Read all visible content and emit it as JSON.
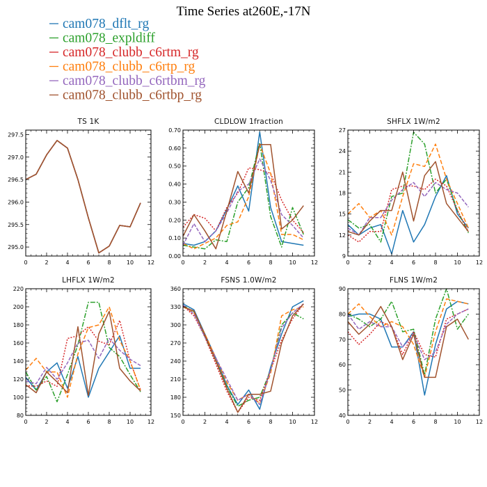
{
  "title": "Time Series at260E,-17N",
  "legend": [
    {
      "label": "cam078_dflt_rg",
      "color": "#1f77b4"
    },
    {
      "label": "cam078_expldiff",
      "color": "#2ca02c"
    },
    {
      "label": "cam078_clubb_c6rtm_rg",
      "color": "#d62728"
    },
    {
      "label": "cam078_clubb_c6rtp_rg",
      "color": "#ff7f0e"
    },
    {
      "label": "cam078_clubb_c6rtbm_rg",
      "color": "#9467bd"
    },
    {
      "label": "cam078_clubb_c6rtbp_rg",
      "color": "#a0522d"
    }
  ],
  "chart_data": [
    {
      "type": "line",
      "title": "TS   1K",
      "x": [
        0,
        1,
        2,
        3,
        4,
        5,
        6,
        7,
        8,
        9,
        10,
        11
      ],
      "xlim": [
        0,
        12
      ],
      "xticks": [
        0,
        2,
        4,
        6,
        8,
        10,
        12
      ],
      "ylim": [
        294.8,
        297.6
      ],
      "yticks": [
        295.0,
        295.5,
        296.0,
        296.5,
        297.0,
        297.5
      ],
      "ytick_labels": [
        "295.0",
        "295.5",
        "296.0",
        "296.5",
        "297.0",
        "297.5"
      ],
      "series": [
        {
          "name": "cam078_dflt_rg",
          "values": [
            296.5,
            296.62,
            297.05,
            297.37,
            297.2,
            296.5,
            295.65,
            294.87,
            295.02,
            295.48,
            295.45,
            295.98
          ]
        },
        {
          "name": "cam078_expldiff",
          "values": [
            296.5,
            296.62,
            297.05,
            297.37,
            297.2,
            296.5,
            295.65,
            294.87,
            295.02,
            295.48,
            295.45,
            295.98
          ]
        },
        {
          "name": "cam078_clubb_c6rtm_rg",
          "values": [
            296.5,
            296.62,
            297.05,
            297.37,
            297.2,
            296.5,
            295.65,
            294.87,
            295.02,
            295.48,
            295.45,
            295.98
          ]
        },
        {
          "name": "cam078_clubb_c6rtp_rg",
          "values": [
            296.5,
            296.62,
            297.05,
            297.37,
            297.2,
            296.5,
            295.65,
            294.87,
            295.02,
            295.48,
            295.45,
            295.98
          ]
        },
        {
          "name": "cam078_clubb_c6rtbm_rg",
          "values": [
            296.5,
            296.62,
            297.05,
            297.37,
            297.2,
            296.5,
            295.65,
            294.87,
            295.02,
            295.48,
            295.45,
            295.98
          ]
        },
        {
          "name": "cam078_clubb_c6rtbp_rg",
          "values": [
            296.5,
            296.62,
            297.05,
            297.37,
            297.2,
            296.5,
            295.65,
            294.87,
            295.02,
            295.48,
            295.45,
            295.98
          ]
        }
      ]
    },
    {
      "type": "line",
      "title": "CLDLOW   1fraction",
      "x": [
        0,
        1,
        2,
        3,
        4,
        5,
        6,
        7,
        8,
        9,
        10,
        11
      ],
      "xlim": [
        0,
        12
      ],
      "xticks": [
        0,
        2,
        4,
        6,
        8,
        10,
        12
      ],
      "ylim": [
        0,
        0.7
      ],
      "yticks": [
        0,
        0.1,
        0.2,
        0.3,
        0.4,
        0.5,
        0.6,
        0.7
      ],
      "ytick_labels": [
        "0.00",
        "0.10",
        "0.20",
        "0.30",
        "0.40",
        "0.50",
        "0.60",
        "0.70"
      ],
      "series": [
        {
          "name": "cam078_dflt_rg",
          "values": [
            0.07,
            0.06,
            0.08,
            0.14,
            0.26,
            0.39,
            0.25,
            0.69,
            0.27,
            0.08,
            0.07,
            0.06
          ]
        },
        {
          "name": "cam078_expldiff",
          "values": [
            0.06,
            0.05,
            0.04,
            0.09,
            0.08,
            0.3,
            0.38,
            0.63,
            0.22,
            0.05,
            0.27,
            0.12
          ]
        },
        {
          "name": "cam078_clubb_c6rtm_rg",
          "values": [
            0.16,
            0.23,
            0.21,
            0.14,
            0.27,
            0.35,
            0.49,
            0.48,
            0.46,
            0.31,
            0.2,
            0.13
          ]
        },
        {
          "name": "cam078_clubb_c6rtp_rg",
          "values": [
            0.07,
            0.04,
            0.07,
            0.1,
            0.17,
            0.19,
            0.33,
            0.62,
            0.46,
            0.12,
            0.12,
            0.09
          ]
        },
        {
          "name": "cam078_clubb_c6rtbm_rg",
          "values": [
            0.06,
            0.18,
            0.08,
            0.14,
            0.24,
            0.36,
            0.4,
            0.54,
            0.42,
            0.23,
            0.17,
            0.1
          ]
        },
        {
          "name": "cam078_clubb_c6rtbp_rg",
          "values": [
            0.11,
            0.23,
            0.14,
            0.04,
            0.25,
            0.47,
            0.35,
            0.62,
            0.62,
            0.15,
            0.2,
            0.28
          ]
        }
      ]
    },
    {
      "type": "line",
      "title": "SHFLX   1W/m2",
      "x": [
        0,
        1,
        2,
        3,
        4,
        5,
        6,
        7,
        8,
        9,
        10,
        11
      ],
      "xlim": [
        0,
        12
      ],
      "xticks": [
        0,
        2,
        4,
        6,
        8,
        10,
        12
      ],
      "ylim": [
        9,
        27
      ],
      "yticks": [
        9,
        12,
        15,
        18,
        21,
        24,
        27
      ],
      "ytick_labels": [
        "9",
        "12",
        "15",
        "18",
        "21",
        "24",
        "27"
      ],
      "series": [
        {
          "name": "cam078_dflt_rg",
          "values": [
            13.5,
            12.0,
            13.0,
            13.5,
            9.3,
            15.5,
            11.0,
            13.5,
            17.5,
            20.5,
            15.0,
            13.0
          ]
        },
        {
          "name": "cam078_expldiff",
          "values": [
            14.2,
            13.0,
            13.5,
            11.0,
            17.5,
            18.0,
            26.7,
            25.0,
            18.0,
            20.0,
            15.5,
            12.3
          ]
        },
        {
          "name": "cam078_clubb_c6rtm_rg",
          "values": [
            12.0,
            11.0,
            12.5,
            12.5,
            18.5,
            19.0,
            19.0,
            18.5,
            20.0,
            19.0,
            15.5,
            12.5
          ]
        },
        {
          "name": "cam078_clubb_c6rtp_rg",
          "values": [
            15.0,
            16.5,
            14.5,
            15.5,
            12.0,
            17.5,
            22.2,
            21.8,
            25.0,
            20.0,
            16.5,
            13.0
          ]
        },
        {
          "name": "cam078_clubb_c6rtbm_rg",
          "values": [
            13.0,
            12.0,
            14.5,
            14.5,
            17.0,
            18.5,
            19.5,
            17.5,
            19.5,
            18.5,
            18.0,
            16.0
          ]
        },
        {
          "name": "cam078_clubb_c6rtbp_rg",
          "values": [
            12.5,
            12.0,
            14.0,
            15.5,
            15.5,
            21.0,
            14.0,
            20.5,
            22.5,
            16.5,
            14.5,
            12.5
          ]
        }
      ]
    },
    {
      "type": "line",
      "title": "LHFLX   1W/m2",
      "x": [
        0,
        1,
        2,
        3,
        4,
        5,
        6,
        7,
        8,
        9,
        10,
        11
      ],
      "xlim": [
        0,
        12
      ],
      "xticks": [
        0,
        2,
        4,
        6,
        8,
        10,
        12
      ],
      "ylim": [
        80,
        220
      ],
      "yticks": [
        80,
        100,
        120,
        140,
        160,
        180,
        200,
        220
      ],
      "ytick_labels": [
        "80",
        "100",
        "120",
        "140",
        "160",
        "180",
        "200",
        "220"
      ],
      "series": [
        {
          "name": "cam078_dflt_rg",
          "values": [
            122,
            108,
            128,
            138,
            110,
            145,
            100,
            132,
            150,
            168,
            132,
            132
          ]
        },
        {
          "name": "cam078_expldiff",
          "values": [
            128,
            108,
            123,
            95,
            125,
            158,
            205,
            205,
            155,
            145,
            125,
            106
          ]
        },
        {
          "name": "cam078_clubb_c6rtm_rg",
          "values": [
            113,
            112,
            118,
            112,
            165,
            168,
            178,
            162,
            158,
            185,
            140,
            108
          ]
        },
        {
          "name": "cam078_clubb_c6rtp_rg",
          "values": [
            130,
            143,
            128,
            128,
            100,
            148,
            177,
            180,
            200,
            163,
            140,
            108
          ]
        },
        {
          "name": "cam078_clubb_c6rtbm_rg",
          "values": [
            118,
            115,
            133,
            120,
            138,
            160,
            163,
            143,
            165,
            152,
            142,
            135
          ]
        },
        {
          "name": "cam078_clubb_c6rtbp_rg",
          "values": [
            114,
            105,
            128,
            117,
            105,
            178,
            102,
            170,
            195,
            132,
            118,
            107
          ]
        }
      ]
    },
    {
      "type": "line",
      "title": "FSNS   1.0W/m2",
      "x": [
        0,
        1,
        2,
        3,
        4,
        5,
        6,
        7,
        8,
        9,
        10,
        11
      ],
      "xlim": [
        0,
        12
      ],
      "xticks": [
        0,
        2,
        4,
        6,
        8,
        10,
        12
      ],
      "ylim": [
        150,
        360
      ],
      "yticks": [
        150,
        180,
        210,
        240,
        270,
        300,
        330,
        360
      ],
      "ytick_labels": [
        "150",
        "180",
        "210",
        "240",
        "270",
        "300",
        "330",
        "360"
      ],
      "series": [
        {
          "name": "cam078_dflt_rg",
          "values": [
            335,
            325,
            285,
            245,
            200,
            168,
            192,
            160,
            230,
            285,
            330,
            340
          ]
        },
        {
          "name": "cam078_expldiff",
          "values": [
            332,
            322,
            280,
            240,
            198,
            165,
            175,
            180,
            225,
            300,
            320,
            310
          ]
        },
        {
          "name": "cam078_clubb_c6rtm_rg",
          "values": [
            332,
            315,
            280,
            235,
            190,
            155,
            180,
            175,
            225,
            275,
            310,
            335
          ]
        },
        {
          "name": "cam078_clubb_c6rtp_rg",
          "values": [
            330,
            320,
            285,
            245,
            205,
            175,
            185,
            170,
            220,
            315,
            325,
            330
          ]
        },
        {
          "name": "cam078_clubb_c6rtbm_rg",
          "values": [
            333,
            318,
            280,
            245,
            210,
            175,
            185,
            168,
            225,
            295,
            320,
            335
          ]
        },
        {
          "name": "cam078_clubb_c6rtbp_rg",
          "values": [
            330,
            323,
            283,
            240,
            195,
            155,
            185,
            185,
            190,
            270,
            315,
            335
          ]
        }
      ]
    },
    {
      "type": "line",
      "title": "FLNS   1W/m2",
      "x": [
        0,
        1,
        2,
        3,
        4,
        5,
        6,
        7,
        8,
        9,
        10,
        11
      ],
      "xlim": [
        0,
        12
      ],
      "xticks": [
        0,
        2,
        4,
        6,
        8,
        10,
        12
      ],
      "ylim": [
        40,
        90
      ],
      "yticks": [
        40,
        50,
        60,
        70,
        80,
        90
      ],
      "ytick_labels": [
        "40",
        "50",
        "60",
        "70",
        "80",
        "90"
      ],
      "series": [
        {
          "name": "cam078_dflt_rg",
          "values": [
            79,
            80,
            80,
            78,
            67,
            67,
            73,
            48,
            68,
            82,
            85,
            84
          ]
        },
        {
          "name": "cam078_expldiff",
          "values": [
            80,
            78,
            75,
            78,
            85,
            73,
            74,
            56,
            78,
            90,
            74,
            80
          ]
        },
        {
          "name": "cam078_clubb_c6rtm_rg",
          "values": [
            73,
            68,
            72,
            77,
            75,
            64,
            73,
            64,
            63,
            78,
            80,
            82
          ]
        },
        {
          "name": "cam078_clubb_c6rtp_rg",
          "values": [
            80,
            84,
            79,
            75,
            77,
            75,
            68,
            55,
            73,
            86,
            85,
            84
          ]
        },
        {
          "name": "cam078_clubb_c6rtbm_rg",
          "values": [
            80,
            74,
            77,
            75,
            75,
            67,
            72,
            62,
            65,
            76,
            80,
            82
          ]
        },
        {
          "name": "cam078_clubb_c6rtbp_rg",
          "values": [
            77,
            72,
            76,
            83,
            75,
            62,
            72,
            55,
            55,
            75,
            78,
            70
          ]
        }
      ]
    }
  ]
}
